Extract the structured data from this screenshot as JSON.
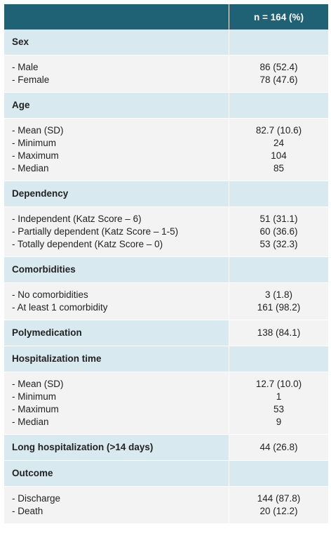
{
  "header": {
    "left": "",
    "right": "n = 164 (%)"
  },
  "sections": {
    "sex": {
      "title": "Sex",
      "items": [
        {
          "label": "- Male",
          "value": "86 (52.4)"
        },
        {
          "label": "- Female",
          "value": "78 (47.6)"
        }
      ]
    },
    "age": {
      "title": "Age",
      "items": [
        {
          "label": "- Mean (SD)",
          "value": "82.7 (10.6)"
        },
        {
          "label": "- Minimum",
          "value": "24"
        },
        {
          "label": "- Maximum",
          "value": "104"
        },
        {
          "label": "- Median",
          "value": "85"
        }
      ]
    },
    "dependency": {
      "title": "Dependency",
      "items": [
        {
          "label": "- Independent (Katz Score – 6)",
          "value": "51 (31.1)"
        },
        {
          "label": "- Partially dependent (Katz Score – 1-5)",
          "value": "60 (36.6)"
        },
        {
          "label": "- Totally dependent (Katz Score – 0)",
          "value": "53 (32.3)"
        }
      ]
    },
    "comorbidities": {
      "title": "Comorbidities",
      "items": [
        {
          "label": "- No comorbidities",
          "value": "3 (1.8)"
        },
        {
          "label": "- At least 1 comorbidity",
          "value": "161 (98.2)"
        }
      ]
    },
    "polymedication": {
      "title": "Polymedication",
      "value": "138 (84.1)"
    },
    "hospitalization": {
      "title": "Hospitalization time",
      "items": [
        {
          "label": "- Mean (SD)",
          "value": "12.7 (10.0)"
        },
        {
          "label": "- Minimum",
          "value": "1"
        },
        {
          "label": "- Maximum",
          "value": "53"
        },
        {
          "label": "- Median",
          "value": "9"
        }
      ]
    },
    "long_hospitalization": {
      "title": "Long hospitalization (>14 days)",
      "value": "44 (26.8)"
    },
    "outcome": {
      "title": "Outcome",
      "items": [
        {
          "label": "- Discharge",
          "value": "144 (87.8)"
        },
        {
          "label": "- Death",
          "value": "20 (12.2)"
        }
      ]
    }
  },
  "colors": {
    "header_bg": "#1f6275",
    "section_bg": "#d8e9f0",
    "row_bg": "#f3f3f3"
  }
}
